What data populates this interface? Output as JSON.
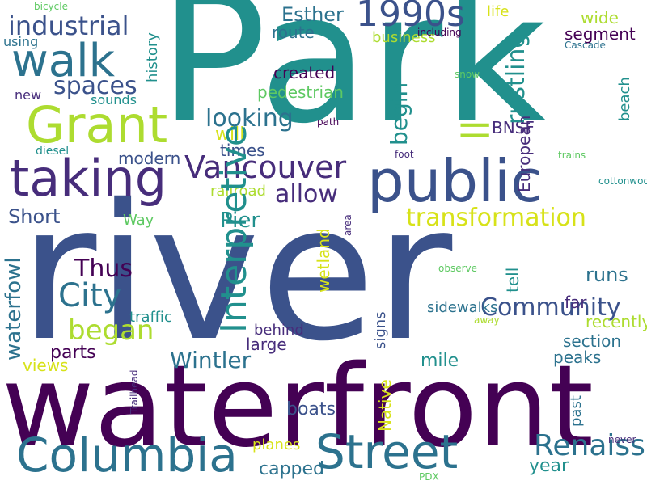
{
  "palette": {
    "dark_purple": "#440154",
    "indigo": "#3b528b",
    "blue": "#2c728e",
    "teal": "#21908d",
    "green": "#5ec962",
    "lime": "#addc30",
    "yellow": "#d7e219"
  },
  "words": [
    {
      "text": "Park",
      "color": "dark_purple_teal"
    },
    {
      "text": "river"
    },
    {
      "text": "waterfront"
    },
    {
      "text": "walk"
    },
    {
      "text": "Grant"
    },
    {
      "text": "taking"
    },
    {
      "text": "public"
    },
    {
      "text": "Columbia"
    },
    {
      "text": "Street"
    },
    {
      "text": "1990s"
    },
    {
      "text": "industrial"
    },
    {
      "text": "spaces"
    },
    {
      "text": "Vancouver"
    },
    {
      "text": "allow"
    },
    {
      "text": "transformation"
    },
    {
      "text": "City"
    },
    {
      "text": "began"
    },
    {
      "text": "Thus"
    },
    {
      "text": "Wintler"
    },
    {
      "text": "Renaissance"
    },
    {
      "text": "year"
    },
    {
      "text": "Community"
    },
    {
      "text": "runs"
    },
    {
      "text": "Pier"
    },
    {
      "text": "Short"
    },
    {
      "text": "looking"
    },
    {
      "text": "created"
    },
    {
      "text": "Esther"
    },
    {
      "text": "route"
    },
    {
      "text": "business"
    },
    {
      "text": "wide"
    },
    {
      "text": "segment"
    },
    {
      "text": "BNSF"
    },
    {
      "text": "will"
    },
    {
      "text": "times"
    },
    {
      "text": "modern"
    },
    {
      "text": "railroad"
    },
    {
      "text": "Way"
    },
    {
      "text": "parts"
    },
    {
      "text": "traffic"
    },
    {
      "text": "behind"
    },
    {
      "text": "large"
    },
    {
      "text": "sidewalks"
    },
    {
      "text": "far"
    },
    {
      "text": "recently"
    },
    {
      "text": "section"
    },
    {
      "text": "peaks"
    },
    {
      "text": "mile"
    },
    {
      "text": "boats"
    },
    {
      "text": "capped"
    },
    {
      "text": "planes"
    },
    {
      "text": "views"
    },
    {
      "text": "bicycle"
    },
    {
      "text": "using"
    },
    {
      "text": "sounds"
    },
    {
      "text": "new"
    },
    {
      "text": "pedestrian"
    },
    {
      "text": "including"
    },
    {
      "text": "Cascade"
    },
    {
      "text": "snow"
    },
    {
      "text": "path"
    },
    {
      "text": "foot"
    },
    {
      "text": "trains"
    },
    {
      "text": "diesel"
    },
    {
      "text": "cottonwoods"
    },
    {
      "text": "observe"
    },
    {
      "text": "away"
    },
    {
      "text": "never"
    },
    {
      "text": "PDX"
    },
    {
      "text": "life"
    },
    {
      "text": "Interpretive"
    },
    {
      "text": "begin"
    },
    {
      "text": "rustling"
    },
    {
      "text": "beach"
    },
    {
      "text": "history"
    },
    {
      "text": "European"
    },
    {
      "text": "waterfowl"
    },
    {
      "text": "wetland"
    },
    {
      "text": "tell"
    },
    {
      "text": "signs"
    },
    {
      "text": "Native"
    },
    {
      "text": "past"
    },
    {
      "text": "area"
    },
    {
      "text": "Trailhead"
    },
    {
      "text": "ll"
    }
  ]
}
